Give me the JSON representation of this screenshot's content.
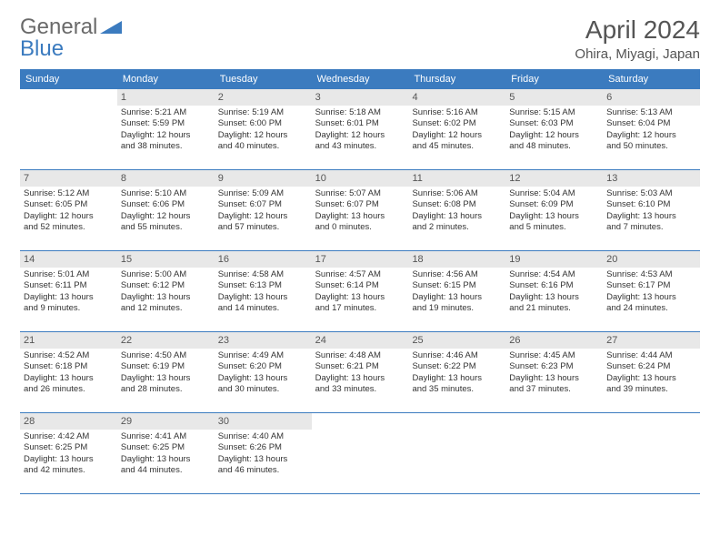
{
  "brand": {
    "name_part1": "General",
    "name_part2": "Blue",
    "color_gray": "#6a6a6a",
    "color_blue": "#3b7bbf"
  },
  "title": "April 2024",
  "location": "Ohira, Miyagi, Japan",
  "colors": {
    "header_bg": "#3b7bbf",
    "header_text": "#ffffff",
    "daynum_bg": "#e8e8e8",
    "border": "#3b7bbf",
    "text": "#333333",
    "background": "#ffffff"
  },
  "typography": {
    "title_fontsize": 28,
    "location_fontsize": 15,
    "header_fontsize": 11,
    "daynum_fontsize": 11,
    "body_fontsize": 9.5
  },
  "day_headers": [
    "Sunday",
    "Monday",
    "Tuesday",
    "Wednesday",
    "Thursday",
    "Friday",
    "Saturday"
  ],
  "weeks": [
    [
      {
        "n": "",
        "sunrise": "",
        "sunset": "",
        "daylight1": "",
        "daylight2": ""
      },
      {
        "n": "1",
        "sunrise": "Sunrise: 5:21 AM",
        "sunset": "Sunset: 5:59 PM",
        "daylight1": "Daylight: 12 hours",
        "daylight2": "and 38 minutes."
      },
      {
        "n": "2",
        "sunrise": "Sunrise: 5:19 AM",
        "sunset": "Sunset: 6:00 PM",
        "daylight1": "Daylight: 12 hours",
        "daylight2": "and 40 minutes."
      },
      {
        "n": "3",
        "sunrise": "Sunrise: 5:18 AM",
        "sunset": "Sunset: 6:01 PM",
        "daylight1": "Daylight: 12 hours",
        "daylight2": "and 43 minutes."
      },
      {
        "n": "4",
        "sunrise": "Sunrise: 5:16 AM",
        "sunset": "Sunset: 6:02 PM",
        "daylight1": "Daylight: 12 hours",
        "daylight2": "and 45 minutes."
      },
      {
        "n": "5",
        "sunrise": "Sunrise: 5:15 AM",
        "sunset": "Sunset: 6:03 PM",
        "daylight1": "Daylight: 12 hours",
        "daylight2": "and 48 minutes."
      },
      {
        "n": "6",
        "sunrise": "Sunrise: 5:13 AM",
        "sunset": "Sunset: 6:04 PM",
        "daylight1": "Daylight: 12 hours",
        "daylight2": "and 50 minutes."
      }
    ],
    [
      {
        "n": "7",
        "sunrise": "Sunrise: 5:12 AM",
        "sunset": "Sunset: 6:05 PM",
        "daylight1": "Daylight: 12 hours",
        "daylight2": "and 52 minutes."
      },
      {
        "n": "8",
        "sunrise": "Sunrise: 5:10 AM",
        "sunset": "Sunset: 6:06 PM",
        "daylight1": "Daylight: 12 hours",
        "daylight2": "and 55 minutes."
      },
      {
        "n": "9",
        "sunrise": "Sunrise: 5:09 AM",
        "sunset": "Sunset: 6:07 PM",
        "daylight1": "Daylight: 12 hours",
        "daylight2": "and 57 minutes."
      },
      {
        "n": "10",
        "sunrise": "Sunrise: 5:07 AM",
        "sunset": "Sunset: 6:07 PM",
        "daylight1": "Daylight: 13 hours",
        "daylight2": "and 0 minutes."
      },
      {
        "n": "11",
        "sunrise": "Sunrise: 5:06 AM",
        "sunset": "Sunset: 6:08 PM",
        "daylight1": "Daylight: 13 hours",
        "daylight2": "and 2 minutes."
      },
      {
        "n": "12",
        "sunrise": "Sunrise: 5:04 AM",
        "sunset": "Sunset: 6:09 PM",
        "daylight1": "Daylight: 13 hours",
        "daylight2": "and 5 minutes."
      },
      {
        "n": "13",
        "sunrise": "Sunrise: 5:03 AM",
        "sunset": "Sunset: 6:10 PM",
        "daylight1": "Daylight: 13 hours",
        "daylight2": "and 7 minutes."
      }
    ],
    [
      {
        "n": "14",
        "sunrise": "Sunrise: 5:01 AM",
        "sunset": "Sunset: 6:11 PM",
        "daylight1": "Daylight: 13 hours",
        "daylight2": "and 9 minutes."
      },
      {
        "n": "15",
        "sunrise": "Sunrise: 5:00 AM",
        "sunset": "Sunset: 6:12 PM",
        "daylight1": "Daylight: 13 hours",
        "daylight2": "and 12 minutes."
      },
      {
        "n": "16",
        "sunrise": "Sunrise: 4:58 AM",
        "sunset": "Sunset: 6:13 PM",
        "daylight1": "Daylight: 13 hours",
        "daylight2": "and 14 minutes."
      },
      {
        "n": "17",
        "sunrise": "Sunrise: 4:57 AM",
        "sunset": "Sunset: 6:14 PM",
        "daylight1": "Daylight: 13 hours",
        "daylight2": "and 17 minutes."
      },
      {
        "n": "18",
        "sunrise": "Sunrise: 4:56 AM",
        "sunset": "Sunset: 6:15 PM",
        "daylight1": "Daylight: 13 hours",
        "daylight2": "and 19 minutes."
      },
      {
        "n": "19",
        "sunrise": "Sunrise: 4:54 AM",
        "sunset": "Sunset: 6:16 PM",
        "daylight1": "Daylight: 13 hours",
        "daylight2": "and 21 minutes."
      },
      {
        "n": "20",
        "sunrise": "Sunrise: 4:53 AM",
        "sunset": "Sunset: 6:17 PM",
        "daylight1": "Daylight: 13 hours",
        "daylight2": "and 24 minutes."
      }
    ],
    [
      {
        "n": "21",
        "sunrise": "Sunrise: 4:52 AM",
        "sunset": "Sunset: 6:18 PM",
        "daylight1": "Daylight: 13 hours",
        "daylight2": "and 26 minutes."
      },
      {
        "n": "22",
        "sunrise": "Sunrise: 4:50 AM",
        "sunset": "Sunset: 6:19 PM",
        "daylight1": "Daylight: 13 hours",
        "daylight2": "and 28 minutes."
      },
      {
        "n": "23",
        "sunrise": "Sunrise: 4:49 AM",
        "sunset": "Sunset: 6:20 PM",
        "daylight1": "Daylight: 13 hours",
        "daylight2": "and 30 minutes."
      },
      {
        "n": "24",
        "sunrise": "Sunrise: 4:48 AM",
        "sunset": "Sunset: 6:21 PM",
        "daylight1": "Daylight: 13 hours",
        "daylight2": "and 33 minutes."
      },
      {
        "n": "25",
        "sunrise": "Sunrise: 4:46 AM",
        "sunset": "Sunset: 6:22 PM",
        "daylight1": "Daylight: 13 hours",
        "daylight2": "and 35 minutes."
      },
      {
        "n": "26",
        "sunrise": "Sunrise: 4:45 AM",
        "sunset": "Sunset: 6:23 PM",
        "daylight1": "Daylight: 13 hours",
        "daylight2": "and 37 minutes."
      },
      {
        "n": "27",
        "sunrise": "Sunrise: 4:44 AM",
        "sunset": "Sunset: 6:24 PM",
        "daylight1": "Daylight: 13 hours",
        "daylight2": "and 39 minutes."
      }
    ],
    [
      {
        "n": "28",
        "sunrise": "Sunrise: 4:42 AM",
        "sunset": "Sunset: 6:25 PM",
        "daylight1": "Daylight: 13 hours",
        "daylight2": "and 42 minutes."
      },
      {
        "n": "29",
        "sunrise": "Sunrise: 4:41 AM",
        "sunset": "Sunset: 6:25 PM",
        "daylight1": "Daylight: 13 hours",
        "daylight2": "and 44 minutes."
      },
      {
        "n": "30",
        "sunrise": "Sunrise: 4:40 AM",
        "sunset": "Sunset: 6:26 PM",
        "daylight1": "Daylight: 13 hours",
        "daylight2": "and 46 minutes."
      },
      {
        "n": "",
        "sunrise": "",
        "sunset": "",
        "daylight1": "",
        "daylight2": ""
      },
      {
        "n": "",
        "sunrise": "",
        "sunset": "",
        "daylight1": "",
        "daylight2": ""
      },
      {
        "n": "",
        "sunrise": "",
        "sunset": "",
        "daylight1": "",
        "daylight2": ""
      },
      {
        "n": "",
        "sunrise": "",
        "sunset": "",
        "daylight1": "",
        "daylight2": ""
      }
    ]
  ]
}
